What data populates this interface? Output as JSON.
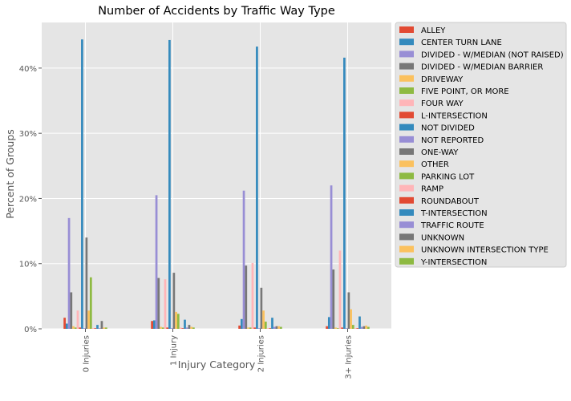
{
  "chart_data": {
    "type": "bar",
    "title": "Number of Accidents by Traffic Way Type",
    "xlabel": "Injury Category",
    "ylabel": "Percent of Groups",
    "categories": [
      "0 Injuries",
      "1 Injury",
      "2 Injuries",
      "3+ Injuries"
    ],
    "ylim": [
      0,
      47
    ],
    "yticks": [
      0,
      10,
      20,
      30,
      40
    ],
    "ytick_labels": [
      "0%",
      "10%",
      "20%",
      "30%",
      "40%"
    ],
    "grid": true,
    "legend_position": "upper-right-outside",
    "series": [
      {
        "name": "ALLEY",
        "color": "#E24A33",
        "values": [
          1.7,
          1.2,
          0.5,
          0.4
        ]
      },
      {
        "name": "CENTER TURN LANE",
        "color": "#348ABD",
        "values": [
          0.8,
          1.3,
          1.5,
          1.8
        ]
      },
      {
        "name": "DIVIDED - W/MEDIAN (NOT RAISED)",
        "color": "#988ED5",
        "values": [
          17.0,
          20.5,
          21.2,
          22.0
        ]
      },
      {
        "name": "DIVIDED - W/MEDIAN BARRIER",
        "color": "#777777",
        "values": [
          5.6,
          7.8,
          9.7,
          9.1
        ]
      },
      {
        "name": "DRIVEWAY",
        "color": "#FBC15E",
        "values": [
          0.4,
          0.3,
          0.2,
          0.2
        ]
      },
      {
        "name": "FIVE POINT, OR MORE",
        "color": "#8EBA42",
        "values": [
          0.2,
          0.2,
          0.2,
          0.1
        ]
      },
      {
        "name": "FOUR WAY",
        "color": "#FFB5B8",
        "values": [
          2.8,
          7.6,
          10.1,
          12.0
        ]
      },
      {
        "name": "L-INTERSECTION",
        "color": "#E24A33",
        "values": [
          0.2,
          0.2,
          0.2,
          0.2
        ]
      },
      {
        "name": "NOT DIVIDED",
        "color": "#348ABD",
        "values": [
          44.4,
          44.3,
          43.3,
          41.6
        ]
      },
      {
        "name": "NOT REPORTED",
        "color": "#988ED5",
        "values": [
          0.1,
          0.1,
          0.1,
          0.1
        ]
      },
      {
        "name": "ONE-WAY",
        "color": "#777777",
        "values": [
          14.0,
          8.6,
          6.3,
          5.6
        ]
      },
      {
        "name": "OTHER",
        "color": "#FBC15E",
        "values": [
          2.8,
          2.6,
          2.8,
          3.0
        ]
      },
      {
        "name": "PARKING LOT",
        "color": "#8EBA42",
        "values": [
          7.9,
          2.3,
          1.1,
          0.6
        ]
      },
      {
        "name": "RAMP",
        "color": "#FFB5B8",
        "values": [
          0.1,
          0.2,
          0.1,
          0.1
        ]
      },
      {
        "name": "ROUNDABOUT",
        "color": "#E24A33",
        "values": [
          0.1,
          0.1,
          0.1,
          0.1
        ]
      },
      {
        "name": "T-INTERSECTION",
        "color": "#348ABD",
        "values": [
          0.6,
          1.4,
          1.7,
          1.9
        ]
      },
      {
        "name": "TRAFFIC ROUTE",
        "color": "#988ED5",
        "values": [
          0.1,
          0.2,
          0.3,
          0.3
        ]
      },
      {
        "name": "UNKNOWN",
        "color": "#777777",
        "values": [
          1.2,
          0.6,
          0.4,
          0.4
        ]
      },
      {
        "name": "UNKNOWN INTERSECTION TYPE",
        "color": "#FBC15E",
        "values": [
          0.2,
          0.3,
          0.4,
          0.5
        ]
      },
      {
        "name": "Y-INTERSECTION",
        "color": "#8EBA42",
        "values": [
          0.2,
          0.2,
          0.3,
          0.3
        ]
      }
    ]
  }
}
